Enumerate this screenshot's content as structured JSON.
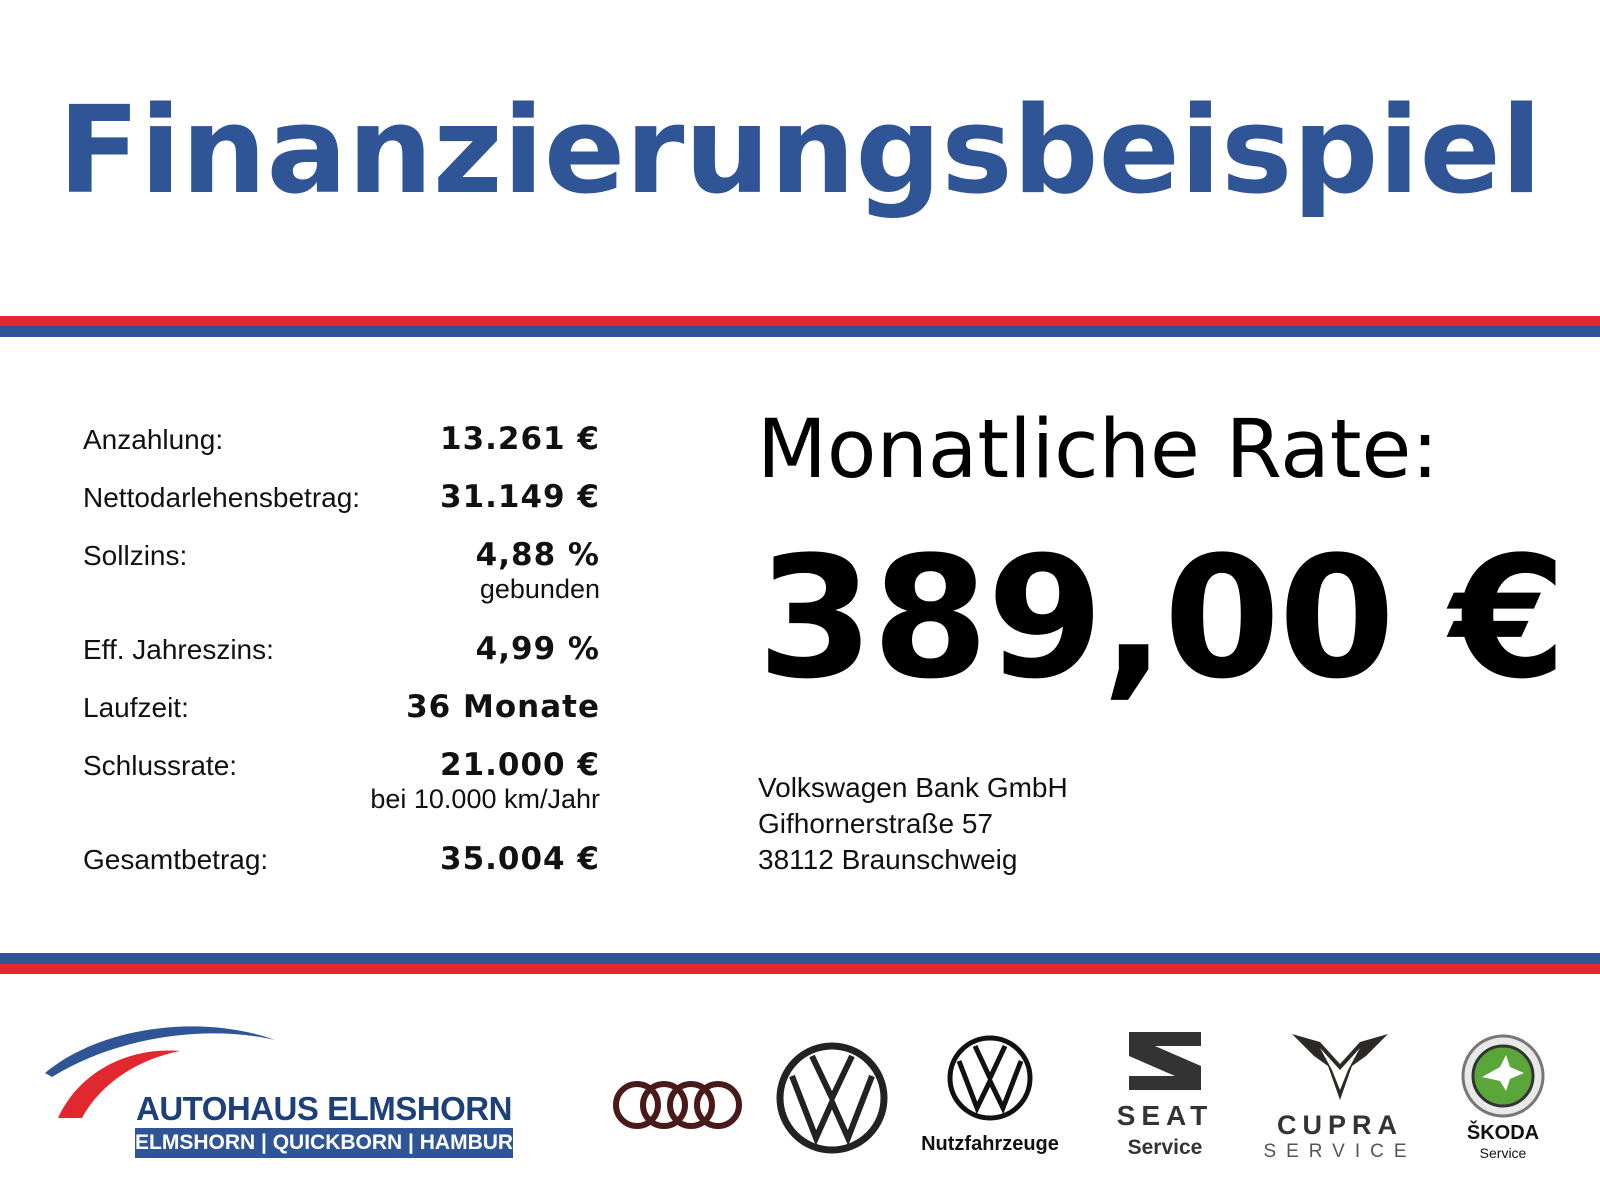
{
  "title": "Finanzierungsbeispiel",
  "colors": {
    "brand_blue": "#2f5597",
    "brand_red": "#e0282e"
  },
  "details": [
    {
      "label": "Anzahlung:",
      "value": "13.261 €",
      "sub": ""
    },
    {
      "label": "Nettodarlehensbetrag:",
      "value": "31.149 €",
      "sub": ""
    },
    {
      "label": "Sollzins:",
      "value": "4,88 %",
      "sub": "gebunden"
    },
    {
      "label": "Eff. Jahreszins:",
      "value": "4,99 %",
      "sub": ""
    },
    {
      "label": "Laufzeit:",
      "value": "36 Monate",
      "sub": ""
    },
    {
      "label": "Schlussrate:",
      "value": "21.000 €",
      "sub": "bei 10.000 km/Jahr"
    },
    {
      "label": "Gesamtbetrag:",
      "value": "35.004 €",
      "sub": ""
    }
  ],
  "rate": {
    "label": "Monatliche Rate:",
    "value": "389,00 €"
  },
  "bank": {
    "name": "Volkswagen Bank GmbH",
    "street": "Gifhornerstraße 57",
    "city": "38112 Braunschweig"
  },
  "dealer": {
    "name": "AUTOHAUS ELMSHORN",
    "cities": "ELMSHORN | QUICKBORN | HAMBURG"
  },
  "brands": {
    "audi_icon": "audi-rings-icon",
    "vw_icon": "vw-logo-icon",
    "vw_nfz_caption": "Nutzfahrzeuge",
    "seat_name": "SEAT",
    "seat_caption": "Service",
    "cupra_name": "CUPRA",
    "cupra_caption": "SERVICE",
    "skoda_name": "ŠKODA",
    "skoda_caption": "Service"
  }
}
